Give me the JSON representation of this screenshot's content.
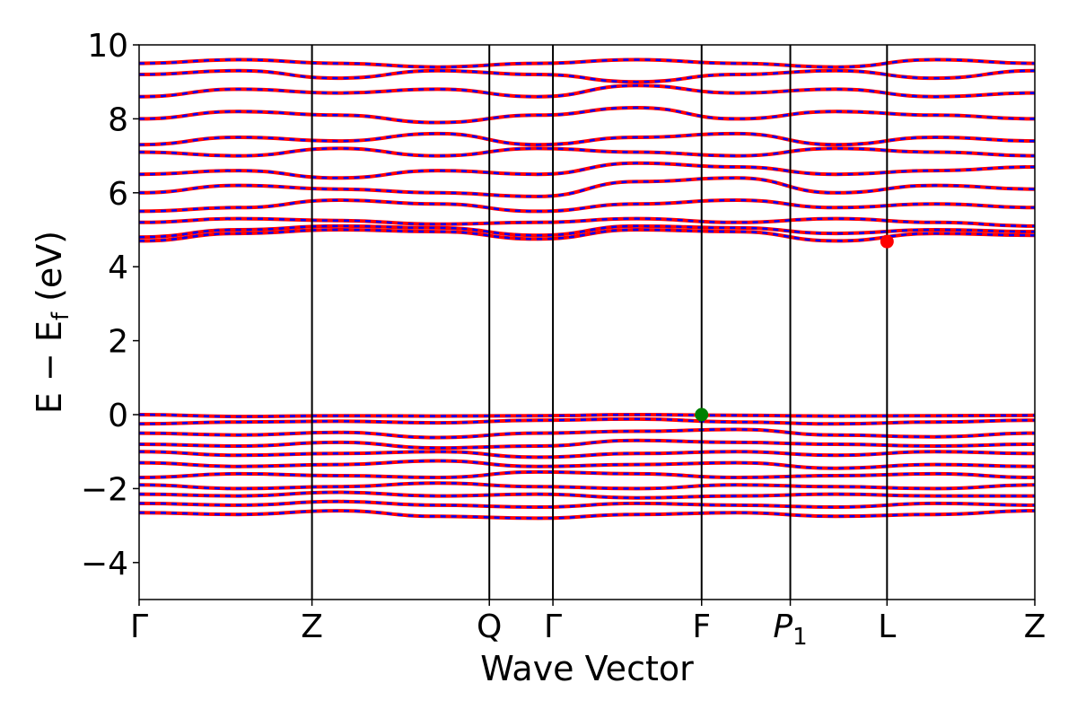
{
  "chart_data": {
    "type": "line",
    "title": "",
    "xlabel": "Wave Vector",
    "ylabel": "E − E_f (eV)",
    "ylabel_parts": {
      "main": "E − E",
      "sub": "f",
      "tail": " (eV)"
    },
    "ylim": [
      -5,
      10
    ],
    "yticks": [
      -4,
      -2,
      0,
      2,
      4,
      6,
      8,
      10
    ],
    "ytick_labels": [
      "−4",
      "−2",
      "0",
      "2",
      "4",
      "6",
      "8",
      "10"
    ],
    "xlim": [
      0,
      1
    ],
    "grid": false,
    "legend": "none",
    "high_symmetry_points": [
      {
        "label": "Γ",
        "x": 0.0
      },
      {
        "label": "Z",
        "x": 0.193
      },
      {
        "label": "Q",
        "x": 0.391
      },
      {
        "label": "Γ",
        "x": 0.462
      },
      {
        "label": "F",
        "x": 0.628
      },
      {
        "label": "P",
        "label_sub": "1",
        "x": 0.727
      },
      {
        "label": "L",
        "x": 0.835
      },
      {
        "label": "Z",
        "x": 1.0
      }
    ],
    "series": [
      {
        "spin": "up",
        "color": "#ff0000",
        "style": "solid"
      },
      {
        "spin": "down",
        "color": "#0000ff",
        "style": "dashed"
      }
    ],
    "valence_bands_approx": [
      [
        0.0,
        -0.05,
        -0.03,
        -0.04,
        -0.03,
        0.0,
        -0.02,
        -0.04,
        -0.03,
        -0.02
      ],
      [
        -0.25,
        -0.2,
        -0.18,
        -0.22,
        -0.15,
        -0.12,
        -0.2,
        -0.25,
        -0.2,
        -0.15
      ],
      [
        -0.5,
        -0.55,
        -0.48,
        -0.62,
        -0.5,
        -0.45,
        -0.4,
        -0.55,
        -0.6,
        -0.5
      ],
      [
        -0.8,
        -0.85,
        -0.75,
        -0.9,
        -0.85,
        -0.7,
        -0.75,
        -0.8,
        -0.85,
        -0.8
      ],
      [
        -1.0,
        -1.1,
        -1.05,
        -1.0,
        -1.15,
        -1.05,
        -1.0,
        -1.1,
        -1.0,
        -1.05
      ],
      [
        -1.3,
        -1.4,
        -1.35,
        -1.25,
        -1.4,
        -1.35,
        -1.3,
        -1.45,
        -1.35,
        -1.4
      ],
      [
        -1.7,
        -1.6,
        -1.65,
        -1.7,
        -1.55,
        -1.6,
        -1.7,
        -1.65,
        -1.6,
        -1.7
      ],
      [
        -1.9,
        -2.0,
        -1.95,
        -1.85,
        -1.95,
        -2.0,
        -1.9,
        -1.95,
        -2.0,
        -1.9
      ],
      [
        -2.15,
        -2.2,
        -2.1,
        -2.2,
        -2.15,
        -2.25,
        -2.2,
        -2.15,
        -2.2,
        -2.2
      ],
      [
        -2.4,
        -2.45,
        -2.35,
        -2.45,
        -2.5,
        -2.4,
        -2.45,
        -2.5,
        -2.4,
        -2.45
      ],
      [
        -2.65,
        -2.7,
        -2.6,
        -2.75,
        -2.8,
        -2.7,
        -2.65,
        -2.75,
        -2.7,
        -2.6
      ]
    ],
    "conduction_bands_approx": [
      [
        4.7,
        4.9,
        5.0,
        4.95,
        4.75,
        5.0,
        4.95,
        4.7,
        4.9,
        4.85
      ],
      [
        4.8,
        5.0,
        5.1,
        5.05,
        4.85,
        5.1,
        5.05,
        4.9,
        5.0,
        4.95
      ],
      [
        5.2,
        5.3,
        5.25,
        5.15,
        5.2,
        5.3,
        5.2,
        5.3,
        5.2,
        5.1
      ],
      [
        5.5,
        5.6,
        5.8,
        5.7,
        5.5,
        5.7,
        5.8,
        5.6,
        5.7,
        5.6
      ],
      [
        6.0,
        6.2,
        6.1,
        6.0,
        5.9,
        6.3,
        6.4,
        6.0,
        6.2,
        6.1
      ],
      [
        6.5,
        6.6,
        6.4,
        6.6,
        6.5,
        6.8,
        6.7,
        6.5,
        6.6,
        6.7
      ],
      [
        7.1,
        7.0,
        7.2,
        7.0,
        7.2,
        7.1,
        7.0,
        7.2,
        7.1,
        7.0
      ],
      [
        7.3,
        7.5,
        7.4,
        7.6,
        7.3,
        7.5,
        7.6,
        7.3,
        7.5,
        7.4
      ],
      [
        8.0,
        8.2,
        8.1,
        7.9,
        8.1,
        8.3,
        8.0,
        8.2,
        8.1,
        8.0
      ],
      [
        8.6,
        8.8,
        8.7,
        8.8,
        8.6,
        8.9,
        8.7,
        8.8,
        8.6,
        8.7
      ],
      [
        9.2,
        9.3,
        9.1,
        9.3,
        9.2,
        9.0,
        9.2,
        9.3,
        9.1,
        9.3
      ],
      [
        9.5,
        9.6,
        9.5,
        9.4,
        9.5,
        9.6,
        9.5,
        9.4,
        9.6,
        9.5
      ]
    ],
    "markers": [
      {
        "name": "valence-band-maximum",
        "x": 0.628,
        "y": 0.0,
        "color": "#008000"
      },
      {
        "name": "conduction-band-minimum",
        "x": 0.835,
        "y": 4.68,
        "color": "#ff0000"
      }
    ]
  }
}
